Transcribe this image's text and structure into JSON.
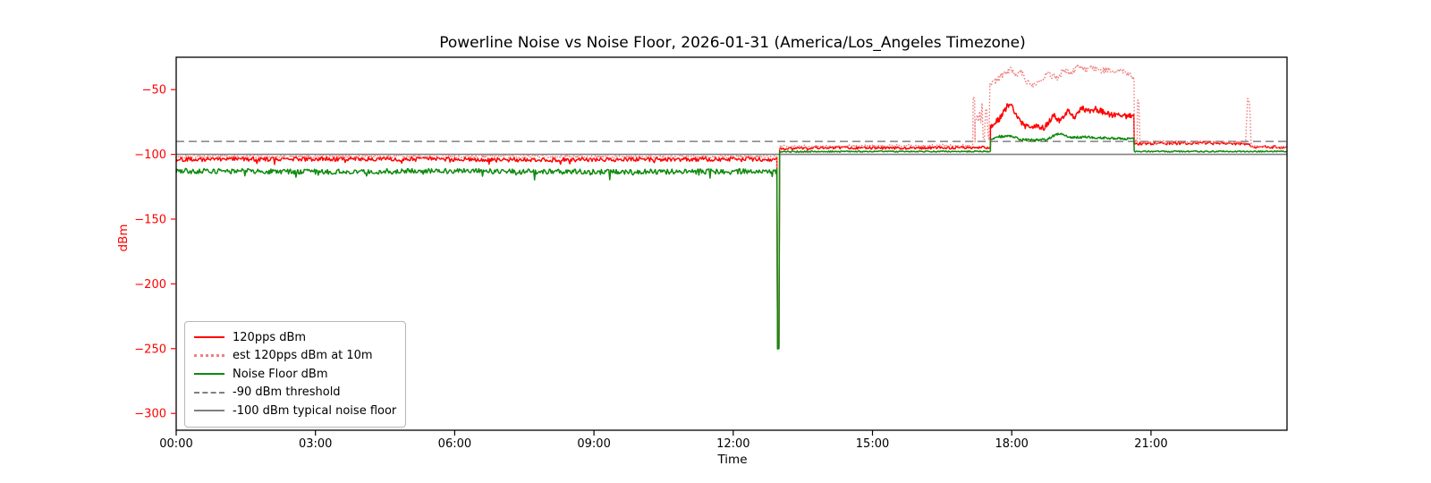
{
  "chart_data": {
    "type": "line",
    "title": "Powerline Noise vs Noise Floor, 2026-01-31 (America/Los_Angeles Timezone)",
    "xlabel": "Time",
    "ylabel": "dBm",
    "x_tick_hours": [
      0,
      3,
      6,
      9,
      12,
      15,
      18,
      21
    ],
    "x_tick_labels": [
      "00:00",
      "03:00",
      "06:00",
      "09:00",
      "12:00",
      "15:00",
      "18:00",
      "21:00"
    ],
    "y_ticks": [
      -50,
      -100,
      -150,
      -200,
      -250,
      -300
    ],
    "xlim_hours": [
      0,
      23.93
    ],
    "ylim": [
      -313,
      -25
    ],
    "colors": {
      "y_axis": "#ff0000",
      "x_axis": "#000000",
      "series_120pps": "#ff0000",
      "series_est10m": "#f08080",
      "series_noise_floor": "#0f8a0f",
      "threshold": "#808080",
      "frame": "#000000"
    },
    "thresholds": [
      {
        "label": "-90 dBm threshold",
        "y": -90,
        "style": "dashed"
      },
      {
        "label": "-100 dBm typical noise floor",
        "y": -100,
        "style": "solid"
      }
    ],
    "legend": [
      {
        "label": "120pps dBm",
        "color": "#ff0000",
        "style": "solid"
      },
      {
        "label": "est 120pps dBm at 10m",
        "color": "#f08080",
        "style": "dotted"
      },
      {
        "label": "Noise Floor dBm",
        "color": "#0f8a0f",
        "style": "solid"
      },
      {
        "label": "-90 dBm threshold",
        "color": "#808080",
        "style": "dashed"
      },
      {
        "label": "-100 dBm typical noise floor",
        "color": "#808080",
        "style": "solid"
      }
    ],
    "series": [
      {
        "name": "120pps dBm",
        "color": "#ff0000",
        "style": "solid",
        "width": 1.5,
        "segments": [
          {
            "t0": 0,
            "t1": 12.955,
            "step": 0.02,
            "noise": 1.7,
            "spike_prob": 0.04,
            "spike_amp": 3.5,
            "levels": [
              [
                0,
                -103.8
              ],
              [
                4,
                -103.4
              ],
              [
                8,
                -104.2
              ],
              [
                12.95,
                -103.6
              ]
            ]
          },
          {
            "t0": 12.955,
            "t1": 12.985,
            "step": 0.01,
            "noise": 0.4,
            "levels": [
              [
                12.955,
                -250
              ],
              [
                12.985,
                -250
              ]
            ]
          },
          {
            "t0": 13.0,
            "t1": 17.54,
            "step": 0.02,
            "noise": 1.0,
            "spike_prob": 0.02,
            "spike_amp": 2,
            "levels": [
              [
                13,
                -95.6
              ],
              [
                14,
                -94.8
              ],
              [
                15.5,
                -95.2
              ],
              [
                17.54,
                -94.6
              ]
            ]
          },
          {
            "t0": 17.54,
            "t1": 20.64,
            "step": 0.015,
            "noise": 2.2,
            "levels": [
              [
                17.54,
                -79
              ],
              [
                17.72,
                -73
              ],
              [
                17.92,
                -62
              ],
              [
                18.02,
                -63.5
              ],
              [
                18.12,
                -72
              ],
              [
                18.3,
                -79
              ],
              [
                18.5,
                -77.5
              ],
              [
                18.7,
                -79.5
              ],
              [
                18.9,
                -70
              ],
              [
                19.05,
                -75
              ],
              [
                19.2,
                -66
              ],
              [
                19.35,
                -72
              ],
              [
                19.5,
                -64
              ],
              [
                19.65,
                -67
              ],
              [
                19.8,
                -64.5
              ],
              [
                19.95,
                -67
              ],
              [
                20.15,
                -69.5
              ],
              [
                20.3,
                -68.5
              ],
              [
                20.45,
                -70.5
              ],
              [
                20.64,
                -69.5
              ]
            ]
          },
          {
            "t0": 20.64,
            "t1": 23.93,
            "step": 0.02,
            "noise": 1.1,
            "spike_prob": 0.01,
            "spike_amp": 2,
            "levels": [
              [
                20.64,
                -91.6
              ],
              [
                22.0,
                -91.3
              ],
              [
                23.05,
                -91.6
              ],
              [
                23.2,
                -94.2
              ],
              [
                23.93,
                -94.6
              ]
            ]
          }
        ]
      },
      {
        "name": "est 120pps dBm at 10m",
        "color": "#f08080",
        "style": "dotted",
        "width": 1.6,
        "segments": [
          {
            "t0": 0,
            "t1": 12.955,
            "step": 0.02,
            "noise": 1.4,
            "levels": [
              [
                0,
                -101.8
              ],
              [
                6,
                -101.5
              ],
              [
                12.95,
                -101.8
              ]
            ]
          },
          {
            "t0": 12.955,
            "t1": 12.985,
            "step": 0.01,
            "noise": 0.4,
            "levels": [
              [
                12.955,
                -250
              ],
              [
                12.985,
                -250
              ]
            ]
          },
          {
            "t0": 13.0,
            "t1": 17.16,
            "step": 0.02,
            "noise": 1.0,
            "levels": [
              [
                13,
                -93.8
              ],
              [
                17.16,
                -93.2
              ]
            ]
          },
          {
            "t0": 17.16,
            "t1": 17.21,
            "step": 0.01,
            "noise": 1.0,
            "levels": [
              [
                17.16,
                -92
              ],
              [
                17.17,
                -56
              ],
              [
                17.2,
                -57
              ],
              [
                17.21,
                -91
              ]
            ]
          },
          {
            "t0": 17.21,
            "t1": 17.53,
            "step": 0.025,
            "noise": 16,
            "levels": [
              [
                17.21,
                -76
              ],
              [
                17.53,
                -76
              ]
            ]
          },
          {
            "t0": 17.53,
            "t1": 20.64,
            "step": 0.015,
            "noise": 2.4,
            "levels": [
              [
                17.53,
                -47
              ],
              [
                17.7,
                -42
              ],
              [
                17.85,
                -37.5
              ],
              [
                17.98,
                -33.5
              ],
              [
                18.08,
                -39
              ],
              [
                18.18,
                -35.5
              ],
              [
                18.32,
                -43.5
              ],
              [
                18.48,
                -47
              ],
              [
                18.62,
                -42
              ],
              [
                18.78,
                -38
              ],
              [
                18.98,
                -41
              ],
              [
                19.12,
                -35
              ],
              [
                19.28,
                -37
              ],
              [
                19.44,
                -31.5
              ],
              [
                19.58,
                -34
              ],
              [
                19.72,
                -32.5
              ],
              [
                19.88,
                -36
              ],
              [
                20.08,
                -34
              ],
              [
                20.22,
                -37
              ],
              [
                20.38,
                -35
              ],
              [
                20.52,
                -38.5
              ],
              [
                20.64,
                -43
              ]
            ]
          },
          {
            "t0": 20.64,
            "t1": 20.78,
            "step": 0.01,
            "noise": 1.0,
            "levels": [
              [
                20.64,
                -88
              ],
              [
                20.68,
                -90
              ],
              [
                20.7,
                -90
              ],
              [
                20.71,
                -58
              ],
              [
                20.74,
                -60
              ],
              [
                20.76,
                -88
              ],
              [
                20.78,
                -90
              ]
            ]
          },
          {
            "t0": 20.78,
            "t1": 23.04,
            "step": 0.02,
            "noise": 1.2,
            "levels": [
              [
                20.78,
                -90.6
              ],
              [
                23.04,
                -90.8
              ]
            ]
          },
          {
            "t0": 23.04,
            "t1": 23.16,
            "step": 0.01,
            "noise": 1.0,
            "levels": [
              [
                23.04,
                -90
              ],
              [
                23.08,
                -57.5
              ],
              [
                23.12,
                -59
              ],
              [
                23.16,
                -92
              ]
            ]
          },
          {
            "t0": 23.16,
            "t1": 23.93,
            "step": 0.02,
            "noise": 1.2,
            "levels": [
              [
                23.16,
                -93.8
              ],
              [
                23.93,
                -94.2
              ]
            ]
          }
        ]
      },
      {
        "name": "Noise Floor dBm",
        "color": "#0f8a0f",
        "style": "solid",
        "width": 1.5,
        "segments": [
          {
            "t0": 0,
            "t1": 12.955,
            "step": 0.02,
            "noise": 2.0,
            "spike_prob": 0.06,
            "spike_amp": 5,
            "levels": [
              [
                0,
                -112.8
              ],
              [
                3,
                -113.4
              ],
              [
                6,
                -112.9
              ],
              [
                9,
                -113.6
              ],
              [
                12.95,
                -113.0
              ]
            ]
          },
          {
            "t0": 12.955,
            "t1": 12.985,
            "step": 0.01,
            "noise": 0.3,
            "levels": [
              [
                12.955,
                -250
              ],
              [
                12.985,
                -250
              ]
            ]
          },
          {
            "t0": 13.0,
            "t1": 17.54,
            "step": 0.02,
            "noise": 0.5,
            "levels": [
              [
                13,
                -97.9
              ],
              [
                17.54,
                -97.7
              ]
            ]
          },
          {
            "t0": 17.54,
            "t1": 20.64,
            "step": 0.015,
            "noise": 0.9,
            "levels": [
              [
                17.54,
                -88
              ],
              [
                17.72,
                -86.3
              ],
              [
                17.9,
                -85.8
              ],
              [
                18.05,
                -86.6
              ],
              [
                18.2,
                -88.6
              ],
              [
                18.5,
                -89
              ],
              [
                18.75,
                -88.6
              ],
              [
                18.92,
                -85.2
              ],
              [
                19.02,
                -83.8
              ],
              [
                19.14,
                -85.6
              ],
              [
                19.3,
                -87
              ],
              [
                19.6,
                -86.6
              ],
              [
                19.9,
                -87.2
              ],
              [
                20.2,
                -87.6
              ],
              [
                20.5,
                -88
              ],
              [
                20.64,
                -88.2
              ]
            ]
          },
          {
            "t0": 20.64,
            "t1": 23.93,
            "step": 0.02,
            "noise": 0.5,
            "levels": [
              [
                20.64,
                -97.8
              ],
              [
                23.93,
                -97.7
              ]
            ]
          }
        ]
      }
    ]
  }
}
